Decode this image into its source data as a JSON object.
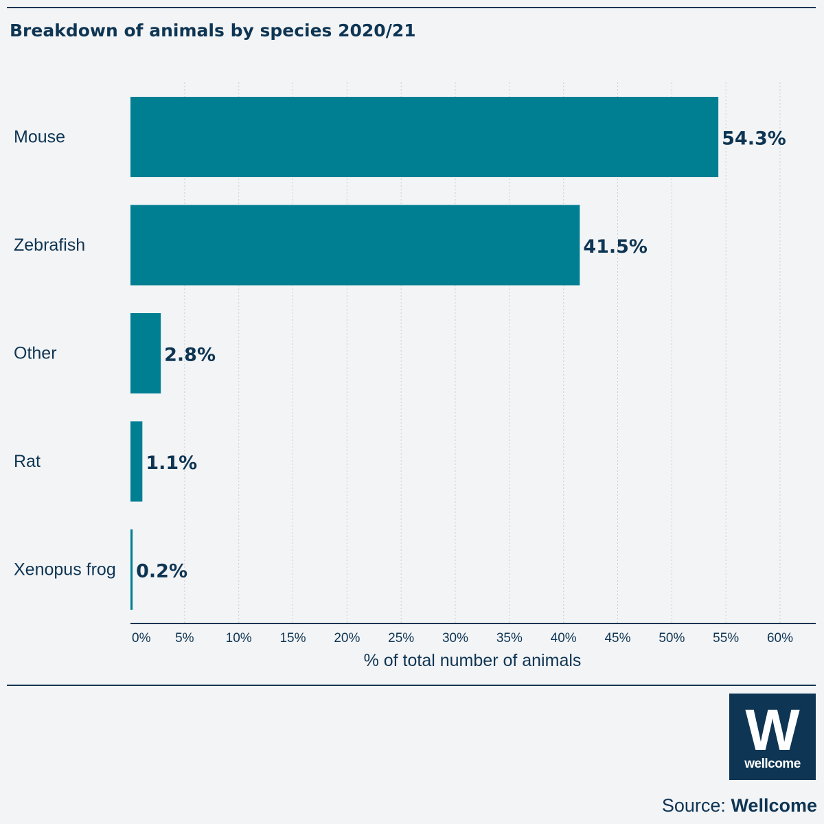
{
  "chart_data": {
    "type": "bar",
    "orientation": "horizontal",
    "title": "Breakdown of animals by species 2020/21",
    "categories": [
      "Mouse",
      "Zebrafish",
      "Other",
      "Rat",
      "Xenopus frog"
    ],
    "values": [
      54.3,
      41.5,
      2.8,
      1.1,
      0.2
    ],
    "value_labels": [
      "54.3%",
      "41.5%",
      "2.8%",
      "1.1%",
      "0.2%"
    ],
    "xlabel": "% of total number of animals",
    "ylabel": "",
    "xlim": [
      0,
      60
    ],
    "xticks": [
      "0%",
      "5%",
      "10%",
      "15%",
      "20%",
      "25%",
      "30%",
      "35%",
      "40%",
      "45%",
      "50%",
      "55%",
      "60%"
    ],
    "grid": "vertical dotted",
    "bar_color": "#007f93",
    "text_color": "#0e3553"
  },
  "source": {
    "label": "Source:",
    "name": "Wellcome"
  },
  "logo": {
    "mark": "W",
    "word": "wellcome",
    "color": "#0e3553"
  }
}
